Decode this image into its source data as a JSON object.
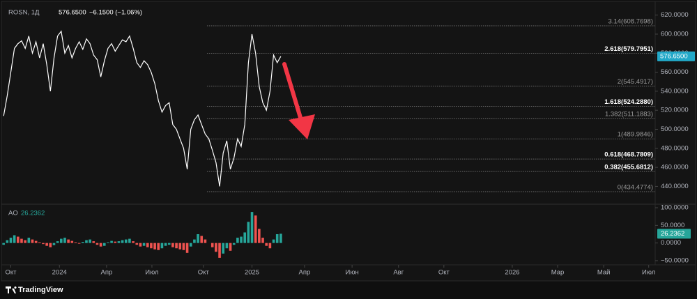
{
  "chart_data": [
    {
      "type": "line",
      "title": "ROSN, 1Д",
      "last_price": {
        "value": 576.65,
        "label": "576.6500"
      },
      "change_label": "−6.1500 (−1.06%)",
      "xlim": [
        0,
        182
      ],
      "ylim": [
        422,
        630
      ],
      "yticks": [
        {
          "value": 620,
          "label": "620.0000"
        },
        {
          "value": 600,
          "label": "600.0000"
        },
        {
          "value": 580,
          "label": "580.0000"
        },
        {
          "value": 560,
          "label": "560.0000"
        },
        {
          "value": 540,
          "label": "540.0000"
        },
        {
          "value": 520,
          "label": "520.0000"
        },
        {
          "value": 500,
          "label": "500.0000"
        },
        {
          "value": 480,
          "label": "480.0000"
        },
        {
          "value": 460,
          "label": "460.0000"
        },
        {
          "value": 440,
          "label": "440.0000"
        }
      ],
      "series": [
        {
          "name": "ROSN",
          "color": "#ffffff",
          "x": [
            1,
            2,
            3,
            4,
            5,
            6,
            7,
            8,
            9,
            10,
            11,
            12,
            13,
            14,
            15,
            16,
            17,
            18,
            19,
            20,
            21,
            22,
            23,
            24,
            25,
            26,
            27,
            28,
            29,
            30,
            31,
            32,
            33,
            34,
            35,
            36,
            37,
            38,
            39,
            40,
            41,
            42,
            43,
            44,
            45,
            46,
            47,
            48,
            49,
            50,
            51,
            52,
            53,
            54,
            55,
            56,
            57,
            58,
            59,
            60,
            61,
            62,
            63,
            64,
            65,
            66,
            67,
            68,
            69,
            70,
            71,
            72,
            73,
            74,
            75,
            76,
            77,
            78
          ],
          "values": [
            514,
            535,
            560,
            585,
            590,
            593,
            585,
            598,
            580,
            592,
            575,
            590,
            568,
            540,
            575,
            598,
            603,
            580,
            588,
            575,
            585,
            592,
            584,
            595,
            590,
            578,
            573,
            555,
            572,
            585,
            590,
            582,
            588,
            594,
            592,
            598,
            585,
            570,
            565,
            572,
            568,
            560,
            548,
            530,
            518,
            525,
            528,
            505,
            500,
            490,
            480,
            458,
            500,
            510,
            515,
            505,
            495,
            490,
            478,
            465,
            440,
            475,
            488,
            458,
            470,
            490,
            482,
            505,
            570,
            600,
            580,
            545,
            528,
            520,
            540,
            578,
            570,
            576.65
          ]
        }
      ],
      "fib_levels": [
        {
          "label": "3.14(608.7698)",
          "value": 608.7698,
          "highlight": false
        },
        {
          "label": "2.618(579.7951)",
          "value": 579.7951,
          "highlight": true
        },
        {
          "label": "2(545.4917)",
          "value": 545.4917,
          "highlight": false
        },
        {
          "label": "1.618(524.2880)",
          "value": 524.288,
          "highlight": true
        },
        {
          "label": "1.382(511.1883)",
          "value": 511.1883,
          "highlight": false
        },
        {
          "label": "1(489.9846)",
          "value": 489.9846,
          "highlight": false
        },
        {
          "label": "0.618(468.7809)",
          "value": 468.7809,
          "highlight": true
        },
        {
          "label": "0.382(455.6812)",
          "value": 455.6812,
          "highlight": true
        },
        {
          "label": "0(434.4774)",
          "value": 434.4774,
          "highlight": false
        }
      ],
      "fib_start_x": 57.5
    },
    {
      "type": "histogram",
      "title": "AO",
      "last_value": {
        "value": 26.2362,
        "label": "26.2362"
      },
      "up_color": "#26a69a",
      "down_color": "#ef5350",
      "xlim": [
        0,
        182
      ],
      "ylim": [
        -58,
        108
      ],
      "yticks": [
        {
          "value": 100,
          "label": "100.0000"
        },
        {
          "value": 50,
          "label": "50.0000"
        },
        {
          "value": 0,
          "label": "0.0000"
        },
        {
          "value": -50,
          "label": "−50.0000"
        }
      ],
      "xticks": [
        {
          "value": 3,
          "label": "Окт"
        },
        {
          "value": 16.5,
          "label": "2024"
        },
        {
          "value": 29.6,
          "label": "Апр"
        },
        {
          "value": 42.2,
          "label": "Июл"
        },
        {
          "value": 56.5,
          "label": "Окт"
        },
        {
          "value": 70,
          "label": "2025"
        },
        {
          "value": 84.6,
          "label": "Апр"
        },
        {
          "value": 97.8,
          "label": "Июн"
        },
        {
          "value": 110.7,
          "label": "Авг"
        },
        {
          "value": 123.3,
          "label": "Окт"
        },
        {
          "value": 142.3,
          "label": "2026"
        },
        {
          "value": 154.9,
          "label": "Мар"
        },
        {
          "value": 167.7,
          "label": "Май"
        },
        {
          "value": 180.2,
          "label": "Июл"
        }
      ],
      "series": [
        {
          "name": "AO",
          "x": [
            1,
            2,
            3,
            4,
            5,
            6,
            7,
            8,
            9,
            10,
            11,
            12,
            13,
            14,
            15,
            16,
            17,
            18,
            19,
            20,
            21,
            22,
            23,
            24,
            25,
            26,
            27,
            28,
            29,
            30,
            31,
            32,
            33,
            34,
            35,
            36,
            37,
            38,
            39,
            40,
            41,
            42,
            43,
            44,
            45,
            46,
            47,
            48,
            49,
            50,
            51,
            52,
            53,
            54,
            55,
            56,
            57,
            58,
            59,
            60,
            61,
            62,
            63,
            64,
            65,
            66,
            67,
            68,
            69,
            70,
            71,
            72,
            73,
            74,
            75,
            76,
            77,
            78
          ],
          "values": [
            -5,
            8,
            15,
            22,
            18,
            12,
            8,
            15,
            10,
            6,
            2,
            -3,
            -8,
            -12,
            -6,
            5,
            12,
            15,
            10,
            6,
            2,
            -2,
            3,
            8,
            10,
            5,
            -5,
            -10,
            -8,
            2,
            6,
            4,
            5,
            8,
            10,
            12,
            5,
            -5,
            -10,
            -8,
            -12,
            -15,
            -18,
            -20,
            -15,
            -8,
            -5,
            -12,
            -15,
            -18,
            -20,
            -28,
            -10,
            10,
            25,
            20,
            10,
            0,
            -12,
            -25,
            -42,
            -30,
            -15,
            -22,
            -5,
            15,
            18,
            30,
            60,
            88,
            78,
            40,
            15,
            -8,
            -15,
            10,
            25,
            26.2362
          ]
        }
      ]
    }
  ],
  "brand": "TradingView"
}
